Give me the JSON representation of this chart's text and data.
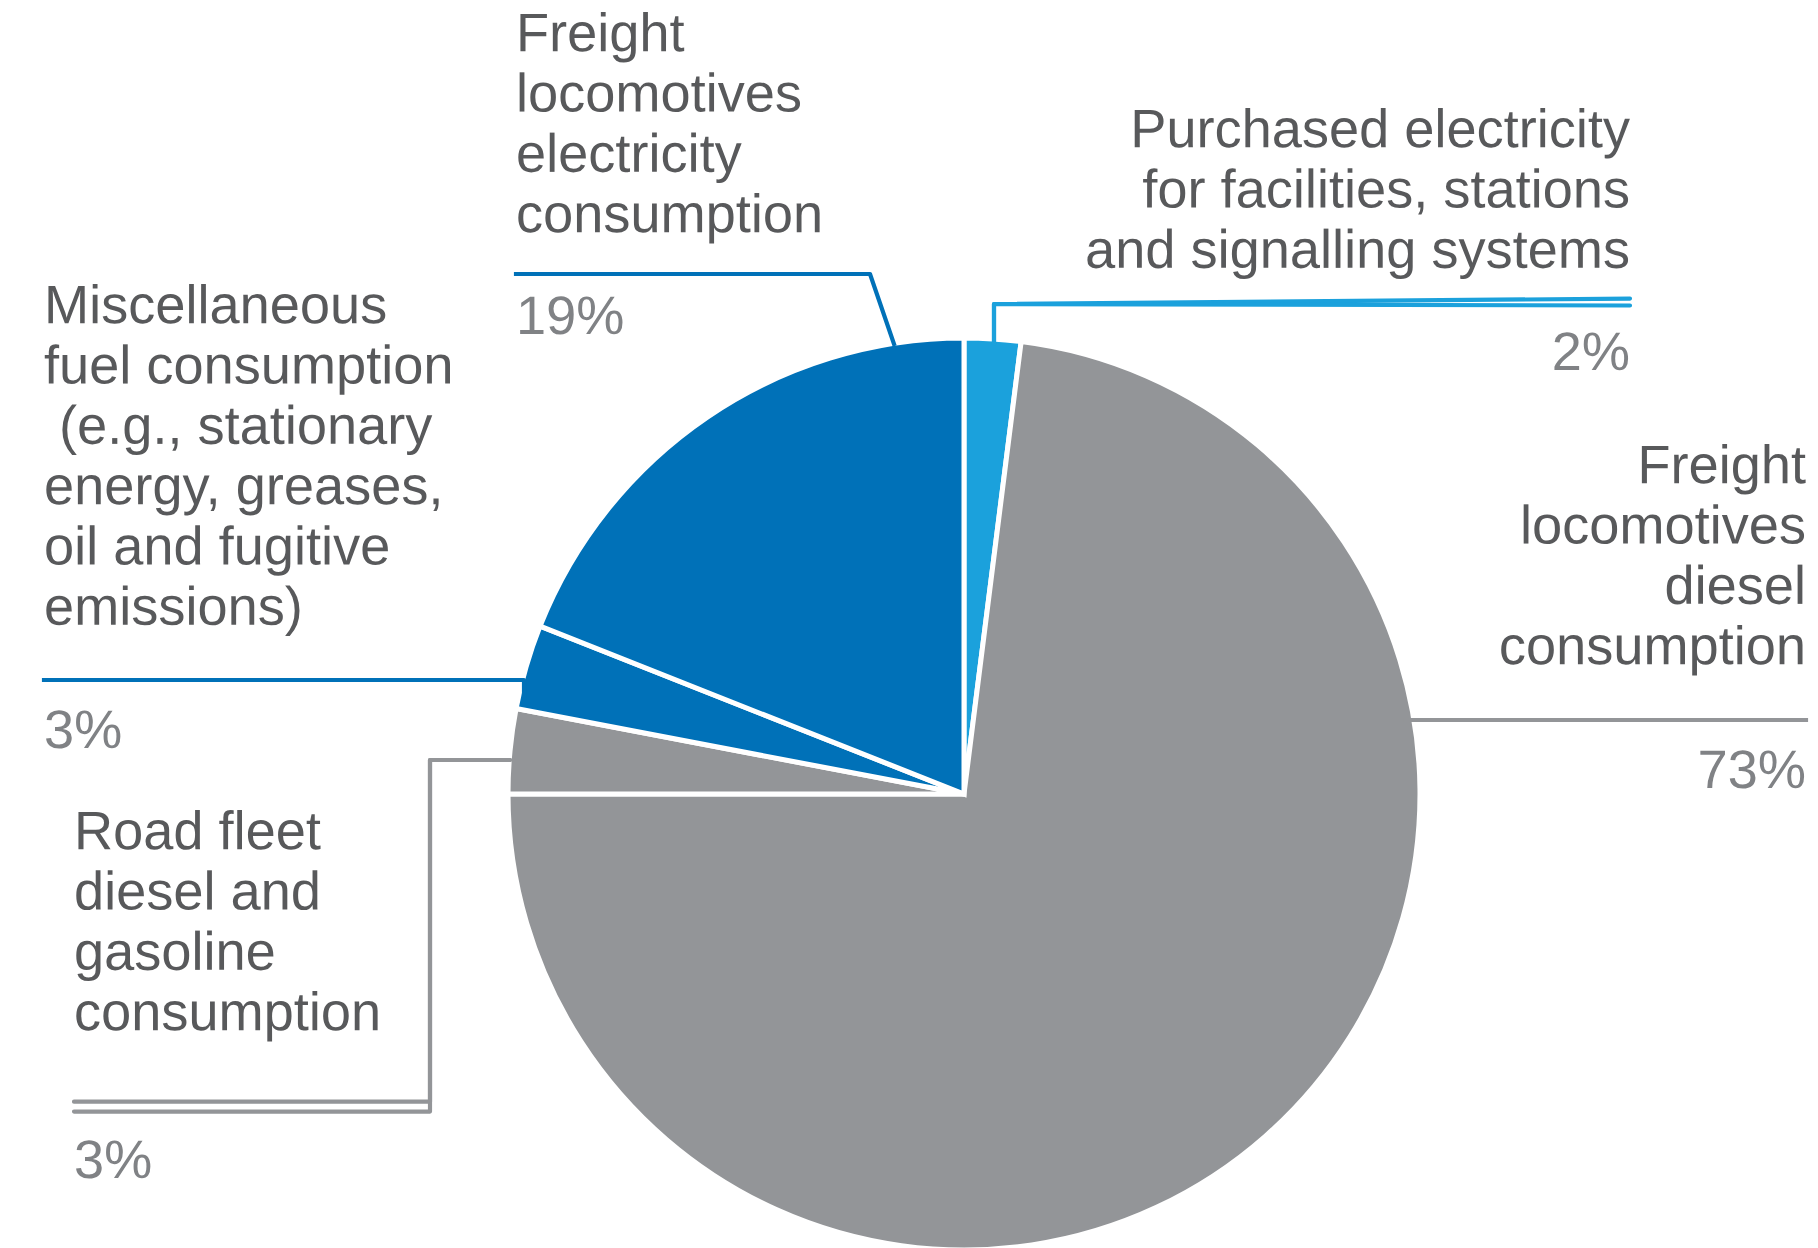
{
  "chart_data": {
    "type": "pie",
    "categories": [
      "Purchased electricity\nfor facilities, stations\nand signalling systems",
      "Freight\nlocomotives\ndiesel\nconsumption",
      "Road fleet\ndiesel and\ngasoline\nconsumption",
      "Miscellaneous\nfuel consumption\n (e.g., stationary\nenergy, greases,\noil and fugitive\nemissions)",
      "Freight\nlocomotives\nelectricity\nconsumption"
    ],
    "values": [
      2,
      73,
      3,
      3,
      19
    ],
    "value_labels": [
      "2%",
      "73%",
      "3%",
      "3%",
      "19%"
    ],
    "colors": [
      "#1ba1dc",
      "#939598",
      "#939598",
      "#0071b8",
      "#0071b8"
    ]
  }
}
